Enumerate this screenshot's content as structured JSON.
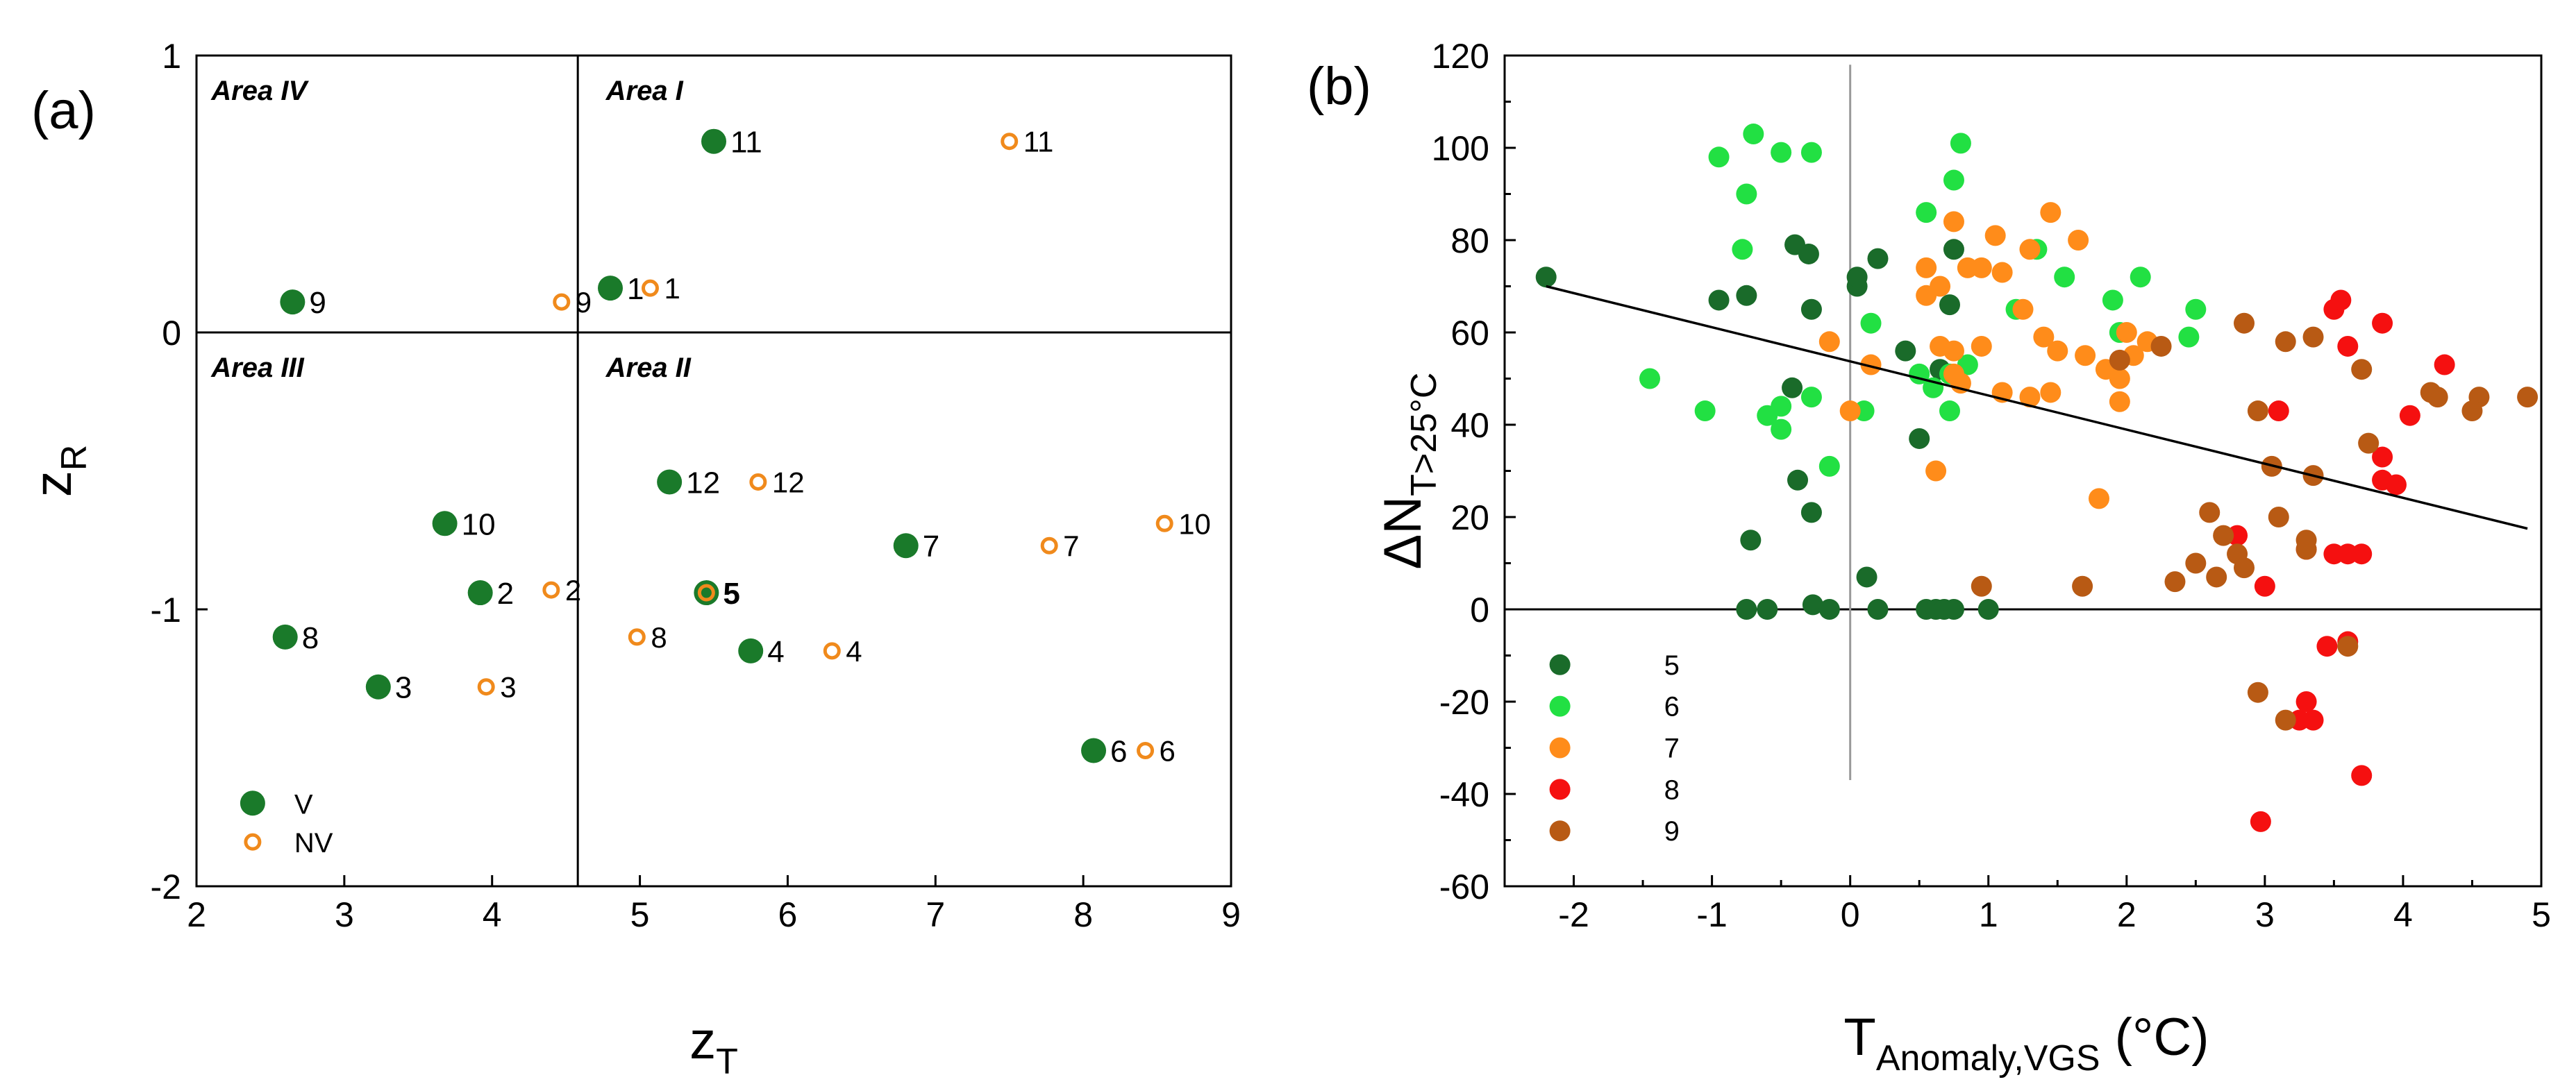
{
  "colors": {
    "v_fill": "#1a7a2a",
    "nv_stroke": "#f08a1c",
    "axis": "#000000",
    "refline": "#000000",
    "zero_vline_b": "#9a9a9a",
    "month_5": "#1a6b2a",
    "month_6": "#22e043",
    "month_7": "#ff8c1a",
    "month_8": "#f51010",
    "month_9": "#b85a14"
  },
  "chart_data": [
    {
      "id": "a",
      "type": "scatter",
      "panel_label": "(a)",
      "xlabel_main": "z",
      "xlabel_sub": "T",
      "ylabel_main": "z",
      "ylabel_sub": "R",
      "xlim": [
        2,
        9
      ],
      "ylim": [
        -2,
        1
      ],
      "xticks": [
        2,
        3,
        4,
        5,
        6,
        7,
        8,
        9
      ],
      "yticks": [
        -2,
        -1,
        0,
        1
      ],
      "xtick_labels": [
        "2",
        "3",
        "4",
        "5",
        "6",
        "7",
        "8",
        "9"
      ],
      "ytick_labels": [
        "-2",
        "-1",
        "0",
        "1"
      ],
      "divider_x": 4.58,
      "divider_y": 0,
      "areas": [
        {
          "label": "Area IV",
          "x": 2.1,
          "y": 0.84
        },
        {
          "label": "Area I",
          "x": 4.77,
          "y": 0.84
        },
        {
          "label": "Area III",
          "x": 2.1,
          "y": -0.16
        },
        {
          "label": "Area II",
          "x": 4.77,
          "y": -0.16
        }
      ],
      "series": [
        {
          "name": "V",
          "style": "filled",
          "points": [
            {
              "x": 4.8,
              "y": 0.16,
              "label": "1"
            },
            {
              "x": 3.92,
              "y": -0.94,
              "label": "2"
            },
            {
              "x": 3.23,
              "y": -1.28,
              "label": "3"
            },
            {
              "x": 5.75,
              "y": -1.15,
              "label": "4"
            },
            {
              "x": 5.45,
              "y": -0.94,
              "label": "5"
            },
            {
              "x": 8.07,
              "y": -1.51,
              "label": "6"
            },
            {
              "x": 6.8,
              "y": -0.77,
              "label": "7"
            },
            {
              "x": 2.6,
              "y": -1.1,
              "label": "8"
            },
            {
              "x": 2.65,
              "y": 0.11,
              "label": "9"
            },
            {
              "x": 3.68,
              "y": -0.69,
              "label": "10"
            },
            {
              "x": 5.5,
              "y": 0.69,
              "label": "11"
            },
            {
              "x": 5.2,
              "y": -0.54,
              "label": "12"
            }
          ]
        },
        {
          "name": "NV",
          "style": "open",
          "points": [
            {
              "x": 5.07,
              "y": 0.16,
              "label": "1"
            },
            {
              "x": 4.4,
              "y": -0.93,
              "label": "2"
            },
            {
              "x": 3.96,
              "y": -1.28,
              "label": "3"
            },
            {
              "x": 6.3,
              "y": -1.15,
              "label": "4"
            },
            {
              "x": 5.45,
              "y": -0.94,
              "label": "5"
            },
            {
              "x": 8.42,
              "y": -1.51,
              "label": "6"
            },
            {
              "x": 7.77,
              "y": -0.77,
              "label": "7"
            },
            {
              "x": 4.98,
              "y": -1.1,
              "label": "8"
            },
            {
              "x": 4.47,
              "y": 0.11,
              "label": "9"
            },
            {
              "x": 8.55,
              "y": -0.69,
              "label": "10"
            },
            {
              "x": 7.5,
              "y": 0.69,
              "label": "11"
            },
            {
              "x": 5.8,
              "y": -0.54,
              "label": "12"
            }
          ]
        }
      ],
      "legend": [
        {
          "label": "V",
          "style": "filled"
        },
        {
          "label": "NV",
          "style": "open"
        }
      ],
      "legend_placement": "bottom-left"
    },
    {
      "id": "b",
      "type": "scatter",
      "panel_label": "(b)",
      "xlabel_main": "T",
      "xlabel_sub": "Anomaly,VGS",
      "xlabel_unit": " (°C)",
      "ylabel_prefix": "ΔN",
      "ylabel_sub": "T>25°C",
      "xlim": [
        -2.5,
        5
      ],
      "ylim": [
        -60,
        120
      ],
      "xticks": [
        -2,
        -1,
        0,
        1,
        2,
        3,
        4,
        5
      ],
      "yticks": [
        -60,
        -40,
        -20,
        0,
        20,
        40,
        60,
        80,
        100,
        120
      ],
      "xtick_labels": [
        "-2",
        "-1",
        "0",
        "1",
        "2",
        "3",
        "4",
        "5"
      ],
      "ytick_labels": [
        "-60",
        "-40",
        "-20",
        "0",
        "20",
        "40",
        "60",
        "80",
        "100",
        "120"
      ],
      "zero_vline": {
        "x": 0,
        "y_from": -37,
        "y_to": 118
      },
      "zero_hline": 0,
      "trend_line": {
        "x1": -2.2,
        "y1": 70,
        "x2": 4.9,
        "y2": 17.5
      },
      "series": [
        {
          "name": "5",
          "color_key": "month_5",
          "points": [
            [
              -2.2,
              72
            ],
            [
              -0.95,
              67
            ],
            [
              -0.75,
              68
            ],
            [
              -0.72,
              15
            ],
            [
              -0.4,
              79
            ],
            [
              -0.42,
              48
            ],
            [
              -0.3,
              77
            ],
            [
              -0.28,
              65
            ],
            [
              -0.38,
              28
            ],
            [
              -0.28,
              21
            ],
            [
              -0.27,
              1
            ],
            [
              -0.6,
              0
            ],
            [
              -0.75,
              0
            ],
            [
              0.05,
              70
            ],
            [
              0.05,
              72
            ],
            [
              0.2,
              76
            ],
            [
              0.4,
              56
            ],
            [
              0.5,
              37
            ],
            [
              0.65,
              52
            ],
            [
              0.75,
              78
            ],
            [
              0.72,
              66
            ],
            [
              0.12,
              7
            ],
            [
              -0.15,
              0
            ],
            [
              0.2,
              0
            ],
            [
              0.55,
              0
            ],
            [
              0.62,
              0
            ],
            [
              0.68,
              0
            ],
            [
              0.75,
              0
            ],
            [
              1.0,
              0
            ]
          ]
        },
        {
          "name": "6",
          "color_key": "month_6",
          "points": [
            [
              -0.95,
              98
            ],
            [
              -0.7,
              103
            ],
            [
              -0.5,
              99
            ],
            [
              -0.28,
              99
            ],
            [
              -0.75,
              90
            ],
            [
              -0.78,
              78
            ],
            [
              -1.45,
              50
            ],
            [
              -1.05,
              43
            ],
            [
              -0.6,
              42
            ],
            [
              -0.5,
              44
            ],
            [
              -0.5,
              39
            ],
            [
              -0.28,
              46
            ],
            [
              -0.15,
              31
            ],
            [
              0.55,
              86
            ],
            [
              0.75,
              93
            ],
            [
              0.8,
              101
            ],
            [
              0.72,
              51
            ],
            [
              0.85,
              53
            ],
            [
              0.15,
              62
            ],
            [
              0.1,
              43
            ],
            [
              0.5,
              51
            ],
            [
              0.6,
              48
            ],
            [
              1.2,
              65
            ],
            [
              1.35,
              78
            ],
            [
              1.55,
              72
            ],
            [
              1.9,
              67
            ],
            [
              2.1,
              72
            ],
            [
              2.5,
              65
            ],
            [
              2.45,
              59
            ],
            [
              1.95,
              60
            ],
            [
              0.72,
              43
            ]
          ]
        },
        {
          "name": "7",
          "color_key": "month_7",
          "points": [
            [
              0.75,
              84
            ],
            [
              1.05,
              81
            ],
            [
              1.3,
              78
            ],
            [
              1.45,
              86
            ],
            [
              1.65,
              80
            ],
            [
              0.55,
              74
            ],
            [
              0.65,
              70
            ],
            [
              0.85,
              74
            ],
            [
              0.95,
              74
            ],
            [
              1.1,
              73
            ],
            [
              1.25,
              65
            ],
            [
              1.4,
              59
            ],
            [
              1.5,
              56
            ],
            [
              1.7,
              55
            ],
            [
              1.85,
              52
            ],
            [
              2.05,
              55
            ],
            [
              2.15,
              58
            ],
            [
              2.0,
              60
            ],
            [
              0.55,
              68
            ],
            [
              0.65,
              57
            ],
            [
              0.75,
              56
            ],
            [
              0.95,
              57
            ],
            [
              1.1,
              47
            ],
            [
              1.3,
              46
            ],
            [
              1.45,
              47
            ],
            [
              1.8,
              24
            ],
            [
              0.8,
              49
            ],
            [
              0.75,
              51
            ],
            [
              0.62,
              30
            ],
            [
              -0.15,
              58
            ],
            [
              0.0,
              43
            ],
            [
              0.15,
              53
            ],
            [
              1.95,
              45
            ],
            [
              1.95,
              50
            ]
          ]
        },
        {
          "name": "8",
          "color_key": "month_8",
          "points": [
            [
              3.5,
              65
            ],
            [
              3.55,
              67
            ],
            [
              3.6,
              57
            ],
            [
              3.85,
              62
            ],
            [
              4.3,
              53
            ],
            [
              4.05,
              42
            ],
            [
              3.1,
              43
            ],
            [
              3.85,
              33
            ],
            [
              3.85,
              28
            ],
            [
              3.95,
              27
            ],
            [
              2.8,
              16
            ],
            [
              3.3,
              13
            ],
            [
              3.5,
              12
            ],
            [
              3.6,
              12
            ],
            [
              3.7,
              12
            ],
            [
              3.0,
              5
            ],
            [
              3.45,
              -8
            ],
            [
              3.6,
              -7
            ],
            [
              3.3,
              -20
            ],
            [
              3.35,
              -24
            ],
            [
              3.25,
              -24
            ],
            [
              3.7,
              -36
            ],
            [
              2.97,
              -46
            ]
          ]
        },
        {
          "name": "9",
          "color_key": "month_9",
          "points": [
            [
              2.85,
              62
            ],
            [
              3.15,
              58
            ],
            [
              3.35,
              59
            ],
            [
              3.7,
              52
            ],
            [
              3.75,
              36
            ],
            [
              4.2,
              47
            ],
            [
              4.25,
              46
            ],
            [
              4.55,
              46
            ],
            [
              4.5,
              43
            ],
            [
              4.9,
              46
            ],
            [
              3.05,
              31
            ],
            [
              3.35,
              29
            ],
            [
              2.95,
              43
            ],
            [
              2.6,
              21
            ],
            [
              2.7,
              16
            ],
            [
              2.8,
              12
            ],
            [
              2.85,
              9
            ],
            [
              2.65,
              7
            ],
            [
              2.5,
              10
            ],
            [
              2.35,
              6
            ],
            [
              3.1,
              20
            ],
            [
              3.3,
              15
            ],
            [
              3.3,
              13
            ],
            [
              2.95,
              -18
            ],
            [
              3.15,
              -24
            ],
            [
              3.6,
              -8
            ],
            [
              1.68,
              5
            ],
            [
              0.95,
              5
            ],
            [
              1.95,
              54
            ],
            [
              2.25,
              57
            ]
          ]
        }
      ],
      "legend": [
        {
          "label": "5",
          "color_key": "month_5"
        },
        {
          "label": "6",
          "color_key": "month_6"
        },
        {
          "label": "7",
          "color_key": "month_7"
        },
        {
          "label": "8",
          "color_key": "month_8"
        },
        {
          "label": "9",
          "color_key": "month_9"
        }
      ],
      "legend_placement": "bottom-left"
    }
  ]
}
